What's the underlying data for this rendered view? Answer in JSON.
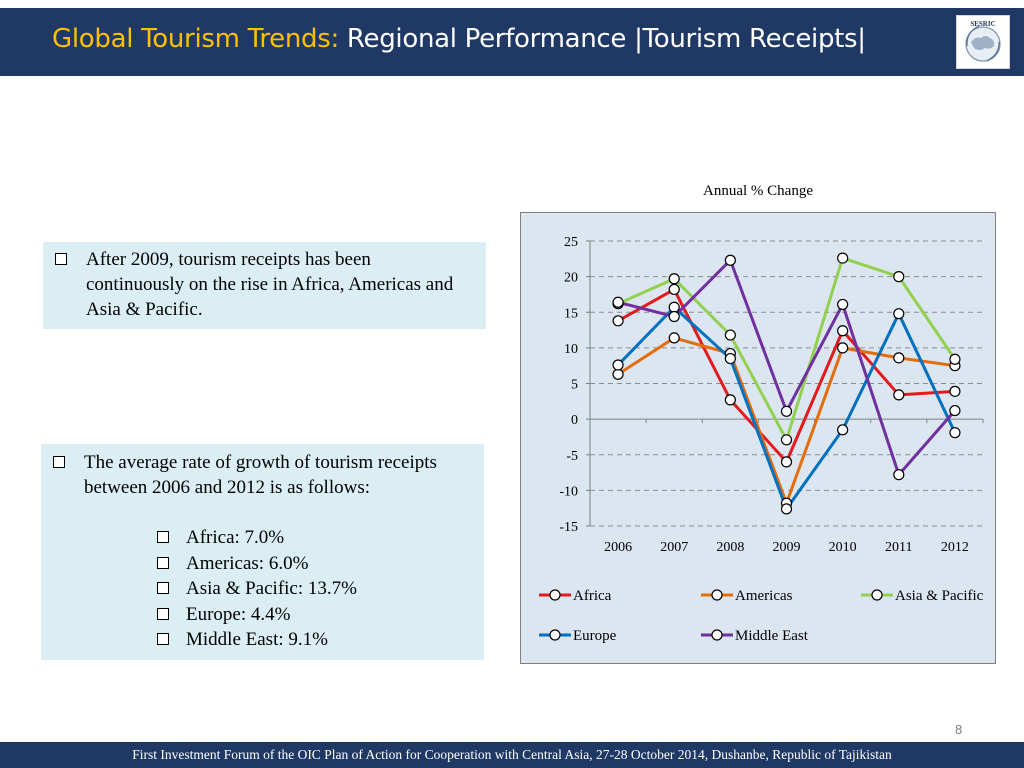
{
  "header": {
    "title_highlight": "Global Tourism Trends:",
    "title_rest": " Regional Performance |Tourism Receipts|",
    "logo_text": "SESRIC"
  },
  "box1": {
    "text": "After 2009, tourism receipts has been continuously on the rise in Africa, Americas and Asia & Pacific."
  },
  "box2": {
    "intro": "The average rate of growth of tourism receipts between 2006 and 2012 is as follows:",
    "items": [
      "Africa: 7.0%",
      "Americas: 6.0%",
      "Asia & Pacific: 13.7%",
      "Europe: 4.4%",
      "Middle East: 9.1%"
    ]
  },
  "chart_data": {
    "type": "line",
    "title": "Annual % Change",
    "x": [
      "2006",
      "2007",
      "2008",
      "2009",
      "2010",
      "2011",
      "2012"
    ],
    "ylim": [
      -15,
      25
    ],
    "yticks": [
      25,
      20,
      15,
      10,
      5,
      0,
      -5,
      -10,
      -15
    ],
    "grid": true,
    "legend": "bottom",
    "series": [
      {
        "name": "Africa",
        "color": "#e41a1c",
        "values": [
          13.8,
          18.2,
          2.7,
          -6.0,
          12.4,
          3.4,
          3.9
        ]
      },
      {
        "name": "Americas",
        "color": "#e46c0a",
        "values": [
          6.3,
          11.4,
          9.2,
          -11.8,
          10.0,
          8.6,
          7.5
        ]
      },
      {
        "name": "Asia & Pacific",
        "color": "#92d050",
        "values": [
          16.2,
          19.7,
          11.8,
          -2.9,
          22.6,
          20.0,
          8.4
        ]
      },
      {
        "name": "Europe",
        "color": "#0070c0",
        "values": [
          7.6,
          15.7,
          8.5,
          -12.6,
          -1.5,
          14.8,
          -1.9
        ]
      },
      {
        "name": "Middle East",
        "color": "#7030a0",
        "values": [
          16.4,
          14.4,
          22.3,
          1.1,
          16.1,
          -7.8,
          1.2
        ]
      }
    ]
  },
  "page_number": "8",
  "footer": "First Investment Forum of the OIC Plan of Action for Cooperation with Central Asia, 27-28 October 2014, Dushanbe, Republic of Tajikistan"
}
